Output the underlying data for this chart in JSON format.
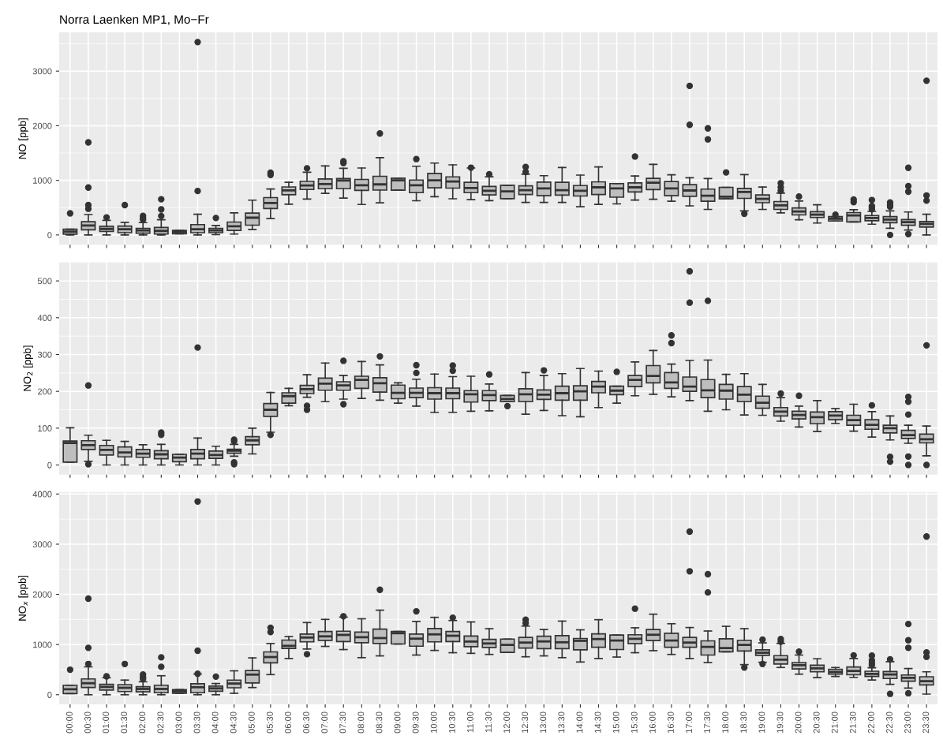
{
  "chart_data": [
    {
      "type": "box",
      "title": "Norra Laenken MP1, Mo−Fr",
      "ylabel": "NO [ppb]",
      "color": "#bebebe",
      "grid": true,
      "tick_labels": "y",
      "ylim": [
        -180,
        3710
      ],
      "yticks": [
        0,
        1000,
        2000,
        3000
      ],
      "boxes": [
        {
          "low": 0,
          "q1": 15,
          "median": 60,
          "q3": 105,
          "high": 105,
          "outliers": [
            395
          ]
        },
        {
          "low": 0,
          "q1": 95,
          "median": 174,
          "q3": 242,
          "high": 374,
          "outliers": [
            1695,
            868,
            547,
            479
          ]
        },
        {
          "low": 0,
          "q1": 63,
          "median": 110,
          "q3": 158,
          "high": 268,
          "outliers": [
            321
          ]
        },
        {
          "low": 0,
          "q1": 42,
          "median": 105,
          "q3": 163,
          "high": 232,
          "outliers": [
            547
          ]
        },
        {
          "low": 0,
          "q1": 32,
          "median": 84,
          "q3": 121,
          "high": 226,
          "outliers": [
            350,
            310,
            280
          ]
        },
        {
          "low": 0,
          "q1": 16,
          "median": 74,
          "q3": 137,
          "high": 279,
          "outliers": [
            653,
            468,
            347
          ]
        },
        {
          "low": 21,
          "q1": 21,
          "median": 53,
          "q3": 84,
          "high": 84
        },
        {
          "low": 0,
          "q1": 42,
          "median": 105,
          "q3": 190,
          "high": 379,
          "outliers": [
            3532,
            805
          ]
        },
        {
          "low": 5,
          "q1": 42,
          "median": 84,
          "q3": 121,
          "high": 174,
          "outliers": [
            311
          ]
        },
        {
          "low": 16,
          "q1": 84,
          "median": 158,
          "q3": 237,
          "high": 405
        },
        {
          "low": 100,
          "q1": 179,
          "median": 316,
          "q3": 400,
          "high": 637
        },
        {
          "low": 300,
          "q1": 484,
          "median": 584,
          "q3": 684,
          "high": 842,
          "outliers": [
            1140,
            1100
          ]
        },
        {
          "low": 563,
          "q1": 737,
          "median": 816,
          "q3": 879,
          "high": 963
        },
        {
          "low": 658,
          "q1": 832,
          "median": 905,
          "q3": 984,
          "high": 1147,
          "outliers": [
            1221
          ]
        },
        {
          "low": 763,
          "q1": 847,
          "median": 932,
          "q3": 1026,
          "high": 1263
        },
        {
          "low": 674,
          "q1": 847,
          "median": 995,
          "q3": 1032,
          "high": 1221,
          "outliers": [
            1350,
            1315
          ]
        },
        {
          "low": 558,
          "q1": 816,
          "median": 911,
          "q3": 1016,
          "high": 1226
        },
        {
          "low": 589,
          "q1": 821,
          "median": 926,
          "q3": 1074,
          "high": 1416,
          "outliers": [
            1858
          ]
        },
        {
          "low": 820,
          "q1": 820,
          "median": 1000,
          "q3": 1040,
          "high": 1040
        },
        {
          "low": 626,
          "q1": 774,
          "median": 911,
          "q3": 1005,
          "high": 1258,
          "outliers": [
            1389
          ]
        },
        {
          "low": 700,
          "q1": 863,
          "median": 1000,
          "q3": 1126,
          "high": 1316
        },
        {
          "low": 663,
          "q1": 858,
          "median": 979,
          "q3": 1063,
          "high": 1284
        },
        {
          "low": 647,
          "q1": 774,
          "median": 858,
          "q3": 963,
          "high": 1226,
          "outliers": [
            1232
          ]
        },
        {
          "low": 628,
          "q1": 734,
          "median": 809,
          "q3": 888,
          "high": 1064,
          "outliers": [
            1112
          ]
        },
        {
          "low": 665,
          "q1": 665,
          "median": 798,
          "q3": 910,
          "high": 910
        },
        {
          "low": 596,
          "q1": 739,
          "median": 819,
          "q3": 899,
          "high": 1112,
          "outliers": [
            1245,
            1154
          ]
        },
        {
          "low": 596,
          "q1": 718,
          "median": 851,
          "q3": 968,
          "high": 1085
        },
        {
          "low": 596,
          "q1": 729,
          "median": 819,
          "q3": 963,
          "high": 1234
        },
        {
          "low": 516,
          "q1": 713,
          "median": 809,
          "q3": 904,
          "high": 1096
        },
        {
          "low": 559,
          "q1": 739,
          "median": 872,
          "q3": 973,
          "high": 1245
        },
        {
          "low": 569,
          "q1": 691,
          "median": 851,
          "q3": 941,
          "high": 941
        },
        {
          "low": 638,
          "q1": 787,
          "median": 872,
          "q3": 952,
          "high": 1080,
          "outliers": [
            1436
          ]
        },
        {
          "low": 654,
          "q1": 830,
          "median": 957,
          "q3": 1037,
          "high": 1293
        },
        {
          "low": 617,
          "q1": 718,
          "median": 851,
          "q3": 979,
          "high": 1101
        },
        {
          "low": 532,
          "q1": 707,
          "median": 814,
          "q3": 920,
          "high": 1048,
          "outliers": [
            2729,
            2016
          ]
        },
        {
          "low": 468,
          "q1": 617,
          "median": 718,
          "q3": 840,
          "high": 1032,
          "outliers": [
            1952,
            1750
          ]
        },
        {
          "low": 660,
          "q1": 660,
          "median": 700,
          "q3": 872,
          "high": 872,
          "outliers": [
            1144
          ]
        },
        {
          "low": 441,
          "q1": 670,
          "median": 787,
          "q3": 851,
          "high": 1106,
          "outliers": [
            388
          ]
        },
        {
          "low": 468,
          "q1": 590,
          "median": 660,
          "q3": 734,
          "high": 878
        },
        {
          "low": 404,
          "q1": 468,
          "median": 543,
          "q3": 612,
          "high": 766,
          "outliers": [
            947,
            872,
            809
          ]
        },
        {
          "low": 277,
          "q1": 367,
          "median": 431,
          "q3": 495,
          "high": 622,
          "outliers": [
            702
          ]
        },
        {
          "low": 218,
          "q1": 319,
          "median": 372,
          "q3": 426,
          "high": 553
        },
        {
          "low": 255,
          "q1": 255,
          "median": 296,
          "q3": 335,
          "high": 335,
          "outliers": [
            372
          ]
        },
        {
          "low": 239,
          "q1": 239,
          "median": 356,
          "q3": 410,
          "high": 463,
          "outliers": [
            649,
            601
          ]
        },
        {
          "low": 197,
          "q1": 261,
          "median": 309,
          "q3": 356,
          "high": 431,
          "outliers": [
            640,
            530,
            500,
            470
          ]
        },
        {
          "low": 122,
          "q1": 223,
          "median": 282,
          "q3": 335,
          "high": 441,
          "outliers": [
            596,
            553,
            516,
            0
          ]
        },
        {
          "low": 90,
          "q1": 176,
          "median": 234,
          "q3": 282,
          "high": 420,
          "outliers": [
            1229,
            894,
            793,
            16
          ]
        },
        {
          "low": 0,
          "q1": 144,
          "median": 202,
          "q3": 245,
          "high": 378,
          "outliers": [
            2824,
            723,
            628
          ]
        }
      ]
    },
    {
      "type": "box",
      "ylabel": "NO$_{2}$ [ppb]",
      "color": "#bebebe",
      "grid": true,
      "tick_labels": "y",
      "ylim": [
        -26,
        551
      ],
      "yticks": [
        0,
        100,
        200,
        300,
        400,
        500
      ],
      "boxes": [
        {
          "low": 8,
          "q1": 8,
          "median": 60,
          "q3": 65,
          "high": 101
        },
        {
          "low": 10,
          "q1": 42,
          "median": 54,
          "q3": 66,
          "high": 81,
          "outliers": [
            216,
            2
          ]
        },
        {
          "low": 0,
          "q1": 27,
          "median": 41,
          "q3": 53,
          "high": 67
        },
        {
          "low": 0,
          "q1": 22,
          "median": 34,
          "q3": 49,
          "high": 64
        },
        {
          "low": 0,
          "q1": 21,
          "median": 31,
          "q3": 42,
          "high": 55
        },
        {
          "low": 0,
          "q1": 17,
          "median": 29,
          "q3": 39,
          "high": 56,
          "outliers": [
            88,
            82
          ]
        },
        {
          "low": 0,
          "q1": 9,
          "median": 20,
          "q3": 29,
          "high": 29
        },
        {
          "low": 0,
          "q1": 17,
          "median": 31,
          "q3": 42,
          "high": 73,
          "outliers": [
            319
          ]
        },
        {
          "low": 0,
          "q1": 18,
          "median": 27,
          "q3": 38,
          "high": 51
        },
        {
          "low": 24,
          "q1": 32,
          "median": 39,
          "q3": 43,
          "high": 56,
          "outliers": [
            69,
            64,
            7,
            2
          ]
        },
        {
          "low": 30,
          "q1": 55,
          "median": 67,
          "q3": 77,
          "high": 100
        },
        {
          "low": 89,
          "q1": 132,
          "median": 150,
          "q3": 167,
          "high": 197,
          "outliers": [
            82
          ]
        },
        {
          "low": 161,
          "q1": 168,
          "median": 187,
          "q3": 196,
          "high": 208
        },
        {
          "low": 184,
          "q1": 194,
          "median": 206,
          "q3": 216,
          "high": 245,
          "outliers": [
            161,
            150
          ]
        },
        {
          "low": 172,
          "q1": 203,
          "median": 221,
          "q3": 236,
          "high": 277
        },
        {
          "low": 179,
          "q1": 203,
          "median": 216,
          "q3": 226,
          "high": 243,
          "outliers": [
            283,
            165
          ]
        },
        {
          "low": 181,
          "q1": 208,
          "median": 231,
          "q3": 241,
          "high": 281
        },
        {
          "low": 176,
          "q1": 198,
          "median": 222,
          "q3": 237,
          "high": 272,
          "outliers": [
            295
          ]
        },
        {
          "low": 168,
          "q1": 180,
          "median": 196,
          "q3": 217,
          "high": 223
        },
        {
          "low": 160,
          "q1": 183,
          "median": 196,
          "q3": 209,
          "high": 233,
          "outliers": [
            271,
            250
          ]
        },
        {
          "low": 143,
          "q1": 179,
          "median": 195,
          "q3": 210,
          "high": 247
        },
        {
          "low": 143,
          "q1": 180,
          "median": 195,
          "q3": 209,
          "high": 240,
          "outliers": [
            270,
            256
          ]
        },
        {
          "low": 146,
          "q1": 171,
          "median": 192,
          "q3": 202,
          "high": 241
        },
        {
          "low": 147,
          "q1": 175,
          "median": 190,
          "q3": 202,
          "high": 220,
          "outliers": [
            246
          ]
        },
        {
          "low": 172,
          "q1": 172,
          "median": 179,
          "q3": 189,
          "high": 189,
          "outliers": [
            160
          ]
        },
        {
          "low": 138,
          "q1": 172,
          "median": 192,
          "q3": 207,
          "high": 251
        },
        {
          "low": 148,
          "q1": 178,
          "median": 191,
          "q3": 204,
          "high": 243,
          "outliers": [
            257
          ]
        },
        {
          "low": 134,
          "q1": 176,
          "median": 195,
          "q3": 214,
          "high": 248
        },
        {
          "low": 131,
          "q1": 176,
          "median": 200,
          "q3": 215,
          "high": 262
        },
        {
          "low": 156,
          "q1": 196,
          "median": 213,
          "q3": 227,
          "high": 255
        },
        {
          "low": 168,
          "q1": 191,
          "median": 202,
          "q3": 214,
          "high": 214,
          "outliers": [
            253
          ]
        },
        {
          "low": 188,
          "q1": 213,
          "median": 231,
          "q3": 243,
          "high": 280
        },
        {
          "low": 192,
          "q1": 223,
          "median": 242,
          "q3": 270,
          "high": 311
        },
        {
          "low": 185,
          "q1": 208,
          "median": 224,
          "q3": 251,
          "high": 274,
          "outliers": [
            352,
            331
          ]
        },
        {
          "low": 175,
          "q1": 200,
          "median": 213,
          "q3": 239,
          "high": 284,
          "outliers": [
            526,
            441
          ]
        },
        {
          "low": 146,
          "q1": 183,
          "median": 203,
          "q3": 232,
          "high": 285,
          "outliers": [
            446
          ]
        },
        {
          "low": 150,
          "q1": 179,
          "median": 202,
          "q3": 219,
          "high": 246
        },
        {
          "low": 136,
          "q1": 172,
          "median": 191,
          "q3": 213,
          "high": 248
        },
        {
          "low": 135,
          "q1": 154,
          "median": 169,
          "q3": 187,
          "high": 219
        },
        {
          "low": 119,
          "q1": 133,
          "median": 145,
          "q3": 156,
          "high": 183,
          "outliers": [
            194
          ]
        },
        {
          "low": 103,
          "q1": 125,
          "median": 136,
          "q3": 146,
          "high": 160,
          "outliers": [
            188
          ]
        },
        {
          "low": 91,
          "q1": 112,
          "median": 130,
          "q3": 144,
          "high": 175
        },
        {
          "low": 113,
          "q1": 123,
          "median": 134,
          "q3": 145,
          "high": 153
        },
        {
          "low": 92,
          "q1": 108,
          "median": 122,
          "q3": 135,
          "high": 165
        },
        {
          "low": 76,
          "q1": 97,
          "median": 109,
          "q3": 123,
          "high": 145,
          "outliers": [
            162
          ]
        },
        {
          "low": 68,
          "q1": 87,
          "median": 100,
          "q3": 108,
          "high": 133,
          "outliers": [
            22,
            9
          ]
        },
        {
          "low": 59,
          "q1": 72,
          "median": 81,
          "q3": 94,
          "high": 108,
          "outliers": [
            185,
            172,
            137,
            23,
            0
          ]
        },
        {
          "low": 25,
          "q1": 60,
          "median": 70,
          "q3": 84,
          "high": 106,
          "outliers": [
            325,
            0
          ]
        }
      ]
    },
    {
      "type": "box",
      "ylabel": "NO$_{x}$ [ppb]",
      "color": "#bebebe",
      "grid": true,
      "ylim": [
        -192,
        4042
      ],
      "yticks": [
        0,
        1000,
        2000,
        3000,
        4000
      ],
      "categories": [
        "00:00",
        "00:30",
        "01:00",
        "01:30",
        "02:00",
        "02:30",
        "03:00",
        "03:30",
        "04:00",
        "04:30",
        "05:00",
        "05:30",
        "06:00",
        "06:30",
        "07:00",
        "07:30",
        "08:00",
        "08:30",
        "09:00",
        "09:30",
        "10:00",
        "10:30",
        "11:00",
        "11:30",
        "12:00",
        "12:30",
        "13:00",
        "13:30",
        "14:00",
        "14:30",
        "15:00",
        "15:30",
        "16:00",
        "16:30",
        "17:00",
        "17:30",
        "18:00",
        "18:30",
        "19:00",
        "19:30",
        "20:00",
        "20:30",
        "21:00",
        "21:30",
        "22:00",
        "22:30",
        "23:00",
        "23:30"
      ],
      "boxes": [
        {
          "low": 23,
          "q1": 23,
          "median": 109,
          "q3": 189,
          "high": 189,
          "outliers": [
            499
          ]
        },
        {
          "low": 0,
          "q1": 143,
          "median": 229,
          "q3": 315,
          "high": 556,
          "outliers": [
            1914,
            934,
            613
          ]
        },
        {
          "low": 0,
          "q1": 92,
          "median": 155,
          "q3": 206,
          "high": 338,
          "outliers": [
            367
          ]
        },
        {
          "low": 0,
          "q1": 63,
          "median": 138,
          "q3": 201,
          "high": 292,
          "outliers": [
            613
          ]
        },
        {
          "low": 0,
          "q1": 57,
          "median": 115,
          "q3": 160,
          "high": 258,
          "outliers": [
            401,
            350,
            315
          ]
        },
        {
          "low": 0,
          "q1": 40,
          "median": 115,
          "q3": 189,
          "high": 378,
          "outliers": [
            745,
            556
          ]
        },
        {
          "low": 29,
          "q1": 29,
          "median": 69,
          "q3": 103,
          "high": 103
        },
        {
          "low": 0,
          "q1": 40,
          "median": 149,
          "q3": 218,
          "high": 413,
          "outliers": [
            3851,
            877,
            418
          ]
        },
        {
          "low": 0,
          "q1": 69,
          "median": 126,
          "q3": 172,
          "high": 223,
          "outliers": [
            361
          ]
        },
        {
          "low": 29,
          "q1": 138,
          "median": 223,
          "q3": 292,
          "high": 476
        },
        {
          "low": 143,
          "q1": 235,
          "median": 401,
          "q3": 481,
          "high": 734
        },
        {
          "low": 401,
          "q1": 636,
          "median": 751,
          "q3": 854,
          "high": 1020,
          "outliers": [
            1335,
            1249
          ]
        },
        {
          "low": 722,
          "q1": 923,
          "median": 974,
          "q3": 1089,
          "high": 1158
        },
        {
          "low": 911,
          "q1": 1054,
          "median": 1140,
          "q3": 1209,
          "high": 1438,
          "outliers": [
            808
          ]
        },
        {
          "low": 963,
          "q1": 1083,
          "median": 1163,
          "q3": 1261,
          "high": 1501
        },
        {
          "low": 900,
          "q1": 1060,
          "median": 1192,
          "q3": 1266,
          "high": 1547,
          "outliers": [
            1564
          ]
        },
        {
          "low": 739,
          "q1": 1037,
          "median": 1146,
          "q3": 1249,
          "high": 1513
        },
        {
          "low": 774,
          "q1": 1020,
          "median": 1129,
          "q3": 1307,
          "high": 1685,
          "outliers": [
            2092
          ]
        },
        {
          "low": 1010,
          "q1": 1010,
          "median": 1226,
          "q3": 1261,
          "high": 1261
        },
        {
          "low": 791,
          "q1": 968,
          "median": 1117,
          "q3": 1209,
          "high": 1461,
          "outliers": [
            1662
          ]
        },
        {
          "low": 883,
          "q1": 1054,
          "median": 1203,
          "q3": 1318,
          "high": 1542
        },
        {
          "low": 837,
          "q1": 1060,
          "median": 1175,
          "q3": 1261,
          "high": 1479,
          "outliers": [
            1536
          ]
        },
        {
          "low": 825,
          "q1": 957,
          "median": 1060,
          "q3": 1169,
          "high": 1450
        },
        {
          "low": 803,
          "q1": 941,
          "median": 1022,
          "q3": 1103,
          "high": 1316
        },
        {
          "low": 843,
          "q1": 843,
          "median": 993,
          "q3": 1109,
          "high": 1109
        },
        {
          "low": 756,
          "q1": 930,
          "median": 1039,
          "q3": 1143,
          "high": 1368,
          "outliers": [
            1495,
            1426
          ]
        },
        {
          "low": 774,
          "q1": 918,
          "median": 1062,
          "q3": 1166,
          "high": 1299
        },
        {
          "low": 739,
          "q1": 918,
          "median": 1045,
          "q3": 1178,
          "high": 1467
        },
        {
          "low": 652,
          "q1": 895,
          "median": 1074,
          "q3": 1120,
          "high": 1293
        },
        {
          "low": 722,
          "q1": 947,
          "median": 1109,
          "q3": 1212,
          "high": 1495
        },
        {
          "low": 751,
          "q1": 901,
          "median": 1080,
          "q3": 1189,
          "high": 1189
        },
        {
          "low": 837,
          "q1": 1016,
          "median": 1114,
          "q3": 1195,
          "high": 1334,
          "outliers": [
            1715
          ]
        },
        {
          "low": 878,
          "q1": 1080,
          "median": 1195,
          "q3": 1299,
          "high": 1605
        },
        {
          "low": 803,
          "q1": 947,
          "median": 1080,
          "q3": 1224,
          "high": 1415
        },
        {
          "low": 722,
          "q1": 947,
          "median": 1039,
          "q3": 1143,
          "high": 1339,
          "outliers": [
            3251,
            2460
          ]
        },
        {
          "low": 641,
          "q1": 791,
          "median": 953,
          "q3": 1074,
          "high": 1270,
          "outliers": [
            2402,
            2038
          ]
        },
        {
          "low": 855,
          "q1": 855,
          "median": 930,
          "q3": 1114,
          "high": 1363
        },
        {
          "low": 600,
          "q1": 872,
          "median": 993,
          "q3": 1085,
          "high": 1316,
          "outliers": [
            543
          ]
        },
        {
          "low": 647,
          "q1": 785,
          "median": 837,
          "q3": 895,
          "high": 1033,
          "outliers": [
            1097,
            612
          ]
        },
        {
          "low": 543,
          "q1": 612,
          "median": 699,
          "q3": 779,
          "high": 1022,
          "outliers": [
            1109,
            1057
          ]
        },
        {
          "low": 410,
          "q1": 514,
          "median": 589,
          "q3": 641,
          "high": 791,
          "outliers": [
            860
          ]
        },
        {
          "low": 341,
          "q1": 456,
          "median": 525,
          "q3": 589,
          "high": 716
        },
        {
          "low": 364,
          "q1": 410,
          "median": 456,
          "q3": 508,
          "high": 543
        },
        {
          "low": 346,
          "q1": 398,
          "median": 473,
          "q3": 554,
          "high": 722,
          "outliers": [
            785
          ]
        },
        {
          "low": 294,
          "q1": 364,
          "median": 416,
          "q3": 468,
          "high": 537,
          "outliers": [
            779,
            687,
            629,
            589
          ]
        },
        {
          "low": 208,
          "q1": 323,
          "median": 404,
          "q3": 462,
          "high": 658,
          "outliers": [
            704,
            17
          ]
        },
        {
          "low": 133,
          "q1": 271,
          "median": 335,
          "q3": 393,
          "high": 520,
          "outliers": [
            1409,
            1085,
            935,
            29
          ]
        },
        {
          "low": 12,
          "q1": 196,
          "median": 271,
          "q3": 358,
          "high": 456,
          "outliers": [
            3152,
            843,
            756
          ]
        }
      ]
    }
  ]
}
